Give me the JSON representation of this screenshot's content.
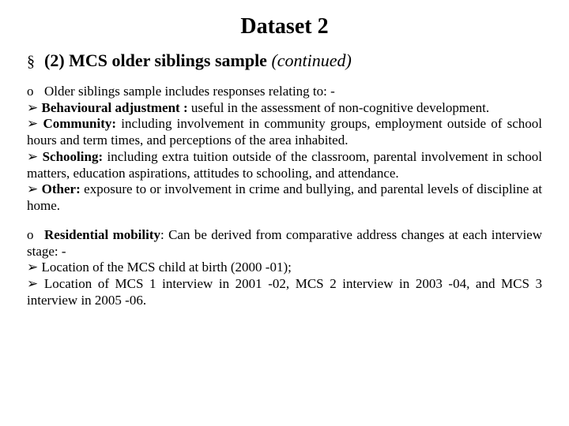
{
  "title": "Dataset 2",
  "heading": {
    "bullet": "§",
    "main": "(2) MCS older siblings sample ",
    "italic": "(continued)"
  },
  "section1": {
    "intro_bullet": "o",
    "intro_text": "Older siblings sample includes responses relating to: -",
    "arrow": "➢",
    "items": [
      {
        "label": "Behavioural adjustment :",
        "text": " useful in the assessment of non-cognitive development."
      },
      {
        "label": "Community:",
        "text": " including involvement in community groups, employment outside of school hours and term times, and perceptions of the area inhabited."
      },
      {
        "label": "Schooling:",
        "text": " including extra tuition outside of the classroom, parental involvement in school matters, education aspirations, attitudes to schooling, and attendance."
      },
      {
        "label": "Other:",
        "text": " exposure to or involvement in crime and bullying, and parental levels of discipline at home."
      }
    ]
  },
  "section2": {
    "intro_bullet": "o",
    "intro_label": "Residential mobility",
    "intro_text": ": Can be derived from comparative address changes at each interview stage: -",
    "arrow": "➢",
    "items": [
      {
        "text": "Location of the MCS child at birth (2000 -01);"
      },
      {
        "text": "Location of MCS 1 interview in 2001 -02, MCS 2 interview in 2003 -04, and MCS 3 interview in 2005 -06."
      }
    ]
  },
  "colors": {
    "text": "#000000",
    "background": "#ffffff"
  },
  "fonts": {
    "family": "Times New Roman",
    "title_size_pt": 28,
    "heading_size_pt": 22,
    "body_size_pt": 17
  }
}
